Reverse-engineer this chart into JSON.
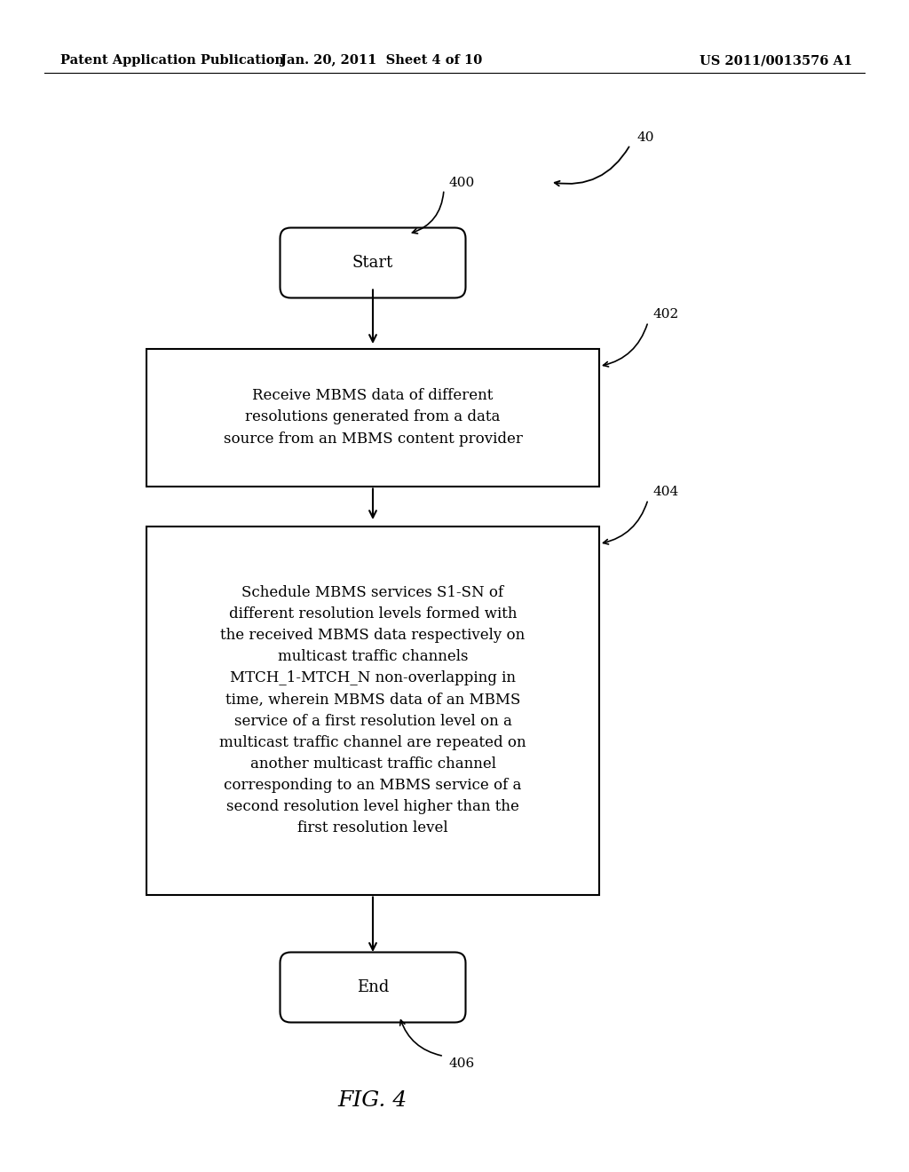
{
  "bg_color": "#ffffff",
  "header_left": "Patent Application Publication",
  "header_mid": "Jan. 20, 2011  Sheet 4 of 10",
  "header_right": "US 2011/0013576 A1",
  "figure_label": "FIG. 4",
  "label_40": "40",
  "label_400": "400",
  "label_402": "402",
  "label_404": "404",
  "label_406": "406",
  "start_text": "Start",
  "end_text": "End",
  "box1_text": "Receive MBMS data of different\nresolutions generated from a data\nsource from an MBMS content provider",
  "box2_text": "Schedule MBMS services S1-SN of\ndifferent resolution levels formed with\nthe received MBMS data respectively on\nmulticast traffic channels\nMTCH_1-MTCH_N non-overlapping in\ntime, wherein MBMS data of an MBMS\nservice of a first resolution level on a\nmulticast traffic channel are repeated on\nanother multicast traffic channel\ncorresponding to an MBMS service of a\nsecond resolution level higher than the\nfirst resolution level",
  "font_size_header": 10.5,
  "font_size_label": 11,
  "font_size_box": 12,
  "font_size_terminal": 13,
  "font_size_fig": 18
}
